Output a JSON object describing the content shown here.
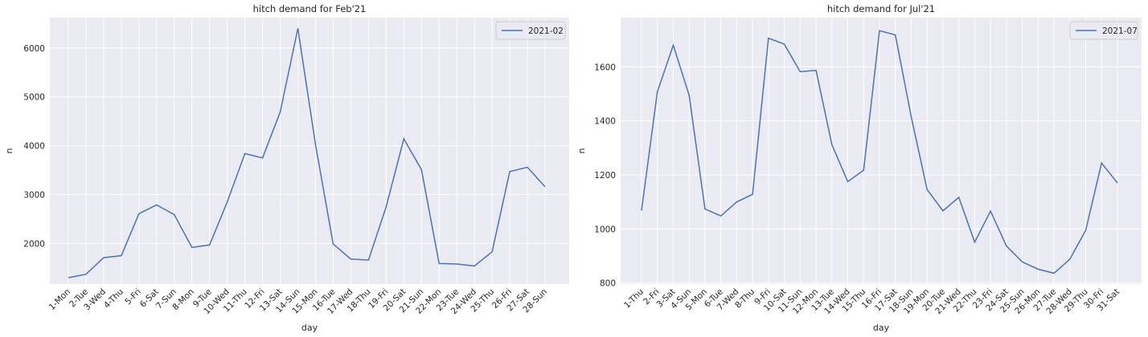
{
  "colors": {
    "background": "#eaeaf2",
    "grid": "#ffffff",
    "line": "#4c72b0",
    "text": "#262626"
  },
  "chart_data": [
    {
      "type": "line",
      "title": "hitch demand for Feb'21",
      "xlabel": "day",
      "ylabel": "n",
      "grid": true,
      "legend": "top-right",
      "categories": [
        "1-Mon",
        "2-Tue",
        "3-Wed",
        "4-Thu",
        "5-Fri",
        "6-Sat",
        "7-Sun",
        "8-Mon",
        "9-Tue",
        "10-Wed",
        "11-Thu",
        "12-Fri",
        "13-Sat",
        "14-Sun",
        "15-Mon",
        "16-Tue",
        "17-Wed",
        "18-Thu",
        "19-Fri",
        "20-Sat",
        "21-Sun",
        "22-Mon",
        "23-Tue",
        "24-Wed",
        "25-Thu",
        "26-Fri",
        "27-Sat",
        "28-Sun"
      ],
      "yticks": [
        "2000",
        "3000",
        "4000",
        "5000",
        "6000"
      ],
      "ylim": [
        1170,
        6620
      ],
      "series": [
        {
          "name": "2021-02",
          "values": [
            1300,
            1370,
            1710,
            1750,
            2610,
            2790,
            2590,
            1920,
            1970,
            2850,
            3840,
            3750,
            4690,
            6400,
            4020,
            1990,
            1680,
            1660,
            2750,
            4140,
            3510,
            1590,
            1580,
            1540,
            1830,
            3470,
            3560,
            3160
          ]
        }
      ]
    },
    {
      "type": "line",
      "title": "hitch demand for Jul'21",
      "xlabel": "day",
      "ylabel": "n",
      "grid": true,
      "legend": "top-right",
      "categories": [
        "1-Thu",
        "2-Fri",
        "3-Sat",
        "4-Sun",
        "5-Mon",
        "6-Tue",
        "7-Wed",
        "8-Thu",
        "9-Fri",
        "10-Sat",
        "11-Sun",
        "12-Mon",
        "13-Tue",
        "14-Wed",
        "15-Thu",
        "16-Fri",
        "17-Sat",
        "18-Sun",
        "19-Mon",
        "20-Tue",
        "21-Wed",
        "22-Thu",
        "23-Fri",
        "24-Sat",
        "25-Sun",
        "26-Mon",
        "27-Tue",
        "28-Wed",
        "29-Thu",
        "30-Fri",
        "31-Sat"
      ],
      "yticks": [
        "800",
        "1000",
        "1200",
        "1400",
        "1600"
      ],
      "ylim": [
        796,
        1782
      ],
      "series": [
        {
          "name": "2021-07",
          "values": [
            1068,
            1508,
            1680,
            1495,
            1074,
            1048,
            1100,
            1128,
            1706,
            1684,
            1582,
            1587,
            1312,
            1175,
            1217,
            1734,
            1718,
            1415,
            1146,
            1067,
            1117,
            951,
            1066,
            937,
            878,
            851,
            836,
            888,
            995,
            1244,
            1170
          ]
        }
      ]
    }
  ]
}
